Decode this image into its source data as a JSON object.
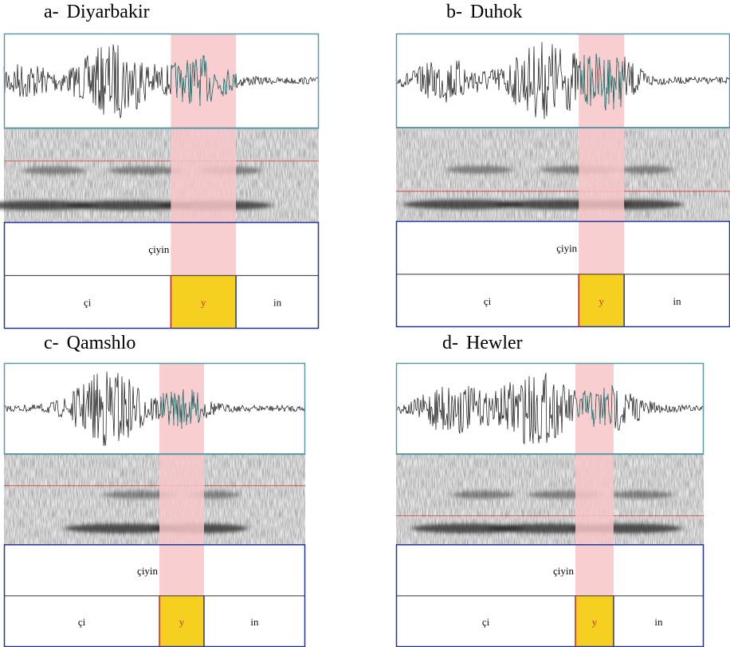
{
  "panels": [
    {
      "label": "a-",
      "title": "Diyarbakir",
      "word": "çiyin",
      "segments": [
        "çi",
        "y",
        "in"
      ]
    },
    {
      "label": "b-",
      "title": "Duhok",
      "word": "çiyin",
      "segments": [
        "çi",
        "y",
        "in"
      ]
    },
    {
      "label": "c-",
      "title": "Qamshlo",
      "word": "çiyin",
      "segments": [
        "çi",
        "y",
        "in"
      ]
    },
    {
      "label": "d-",
      "title": "Hewler",
      "word": "çiyin",
      "segments": [
        "çi",
        "y",
        "in"
      ]
    }
  ]
}
